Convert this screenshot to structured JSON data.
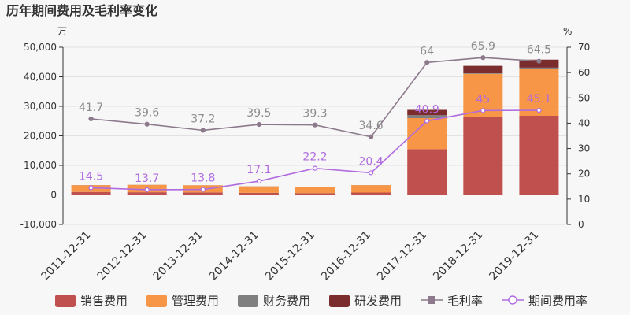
{
  "chart_data": {
    "type": "bar",
    "title": "历年期间费用及毛利率变化",
    "left_unit": "万",
    "right_unit": "%",
    "categories": [
      "2011-12-31",
      "2012-12-31",
      "2013-12-31",
      "2014-12-31",
      "2015-12-31",
      "2016-12-31",
      "2017-12-31",
      "2018-12-31",
      "2019-12-31"
    ],
    "ylim_left": [
      -10000,
      50000
    ],
    "yticks_left": [
      -10000,
      0,
      10000,
      20000,
      30000,
      40000,
      50000
    ],
    "yticks_left_labels": [
      "-10,000",
      "0",
      "10,000",
      "20,000",
      "30,000",
      "40,000",
      "50,000"
    ],
    "ylim_right": [
      0,
      70
    ],
    "yticks_right": [
      0,
      10,
      20,
      30,
      40,
      50,
      60,
      70
    ],
    "stacked_bars": [
      {
        "name": "销售费用",
        "color": "#c0504d",
        "values": [
          1000,
          900,
          850,
          700,
          600,
          800,
          15500,
          26500,
          26800
        ]
      },
      {
        "name": "管理费用",
        "color": "#f79646",
        "values": [
          2300,
          2500,
          2400,
          2200,
          2100,
          2500,
          10500,
          14500,
          16000
        ]
      },
      {
        "name": "财务费用",
        "color": "#7f7f7f",
        "values": [
          30,
          30,
          30,
          30,
          30,
          30,
          1000,
          200,
          300
        ]
      },
      {
        "name": "研发费用",
        "color": "#7b2d2d",
        "values": [
          0,
          0,
          0,
          0,
          0,
          0,
          1800,
          2500,
          2700
        ]
      }
    ],
    "lines": [
      {
        "name": "毛利率",
        "color": "#8c7a8c",
        "values": [
          41.7,
          39.6,
          37.2,
          39.5,
          39.3,
          34.6,
          64,
          65.9,
          64.5
        ],
        "labels": [
          "41.7",
          "39.6",
          "37.2",
          "39.5",
          "39.3",
          "34.6",
          "64",
          "65.9",
          "64.5"
        ]
      },
      {
        "name": "期间费用率",
        "color": "#b06be0",
        "values": [
          14.5,
          13.7,
          13.8,
          17.1,
          22.2,
          20.4,
          40.9,
          45,
          45.1
        ],
        "labels": [
          "14.5",
          "13.7",
          "13.8",
          "17.1",
          "22.2",
          "20.4",
          "40.9",
          "45",
          "45.1"
        ]
      }
    ]
  }
}
